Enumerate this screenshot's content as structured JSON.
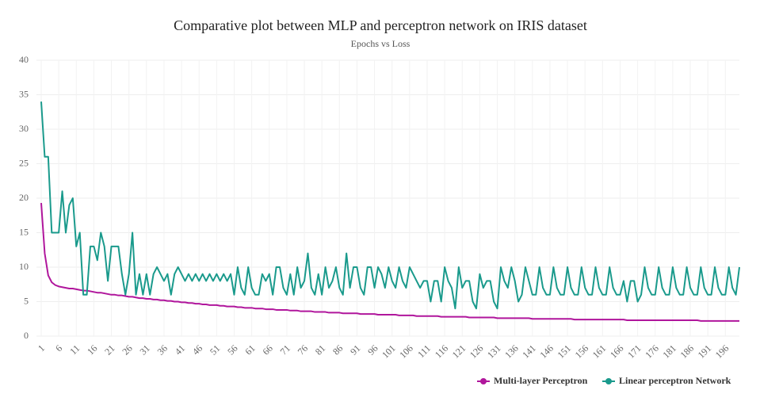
{
  "chart_data": {
    "type": "line",
    "title": "Comparative plot between MLP and perceptron network on IRIS dataset",
    "subtitle": "Epochs vs Loss",
    "categories": [
      "1",
      null,
      null,
      null,
      null,
      "6",
      null,
      null,
      null,
      null,
      "11",
      null,
      null,
      null,
      null,
      "16",
      null,
      null,
      null,
      null,
      "21",
      null,
      null,
      null,
      null,
      "26",
      null,
      null,
      null,
      null,
      "31",
      null,
      null,
      null,
      null,
      "36",
      null,
      null,
      null,
      null,
      "41",
      null,
      null,
      null,
      null,
      "46",
      null,
      null,
      null,
      null,
      "51",
      null,
      null,
      null,
      null,
      "56",
      null,
      null,
      null,
      null,
      "61",
      null,
      null,
      null,
      null,
      "66",
      null,
      null,
      null,
      null,
      "71",
      null,
      null,
      null,
      null,
      "76",
      null,
      null,
      null,
      null,
      "81",
      null,
      null,
      null,
      null,
      "86",
      null,
      null,
      null,
      null,
      "91",
      null,
      null,
      null,
      null,
      "96",
      null,
      null,
      null,
      null,
      "101",
      null,
      null,
      null,
      null,
      "106",
      null,
      null,
      null,
      null,
      "111",
      null,
      null,
      null,
      null,
      "116",
      null,
      null,
      null,
      null,
      "121",
      null,
      null,
      null,
      null,
      "126",
      null,
      null,
      null,
      null,
      "131",
      null,
      null,
      null,
      null,
      "136",
      null,
      null,
      null,
      null,
      "141",
      null,
      null,
      null,
      null,
      "146",
      null,
      null,
      null,
      null,
      "151",
      null,
      null,
      null,
      null,
      "156",
      null,
      null,
      null,
      null,
      "161",
      null,
      null,
      null,
      null,
      "166",
      null,
      null,
      null,
      null,
      "171",
      null,
      null,
      null,
      null,
      "176",
      null,
      null,
      null,
      null,
      "181",
      null,
      null,
      null,
      null,
      "186",
      null,
      null,
      null,
      null,
      "191",
      null,
      null,
      null,
      null,
      "196",
      null,
      null,
      null,
      null
    ],
    "series": [
      {
        "name": "Multi-layer Perceptron",
        "color": "#b0169c",
        "values": [
          19.3,
          12,
          8.8,
          7.8,
          7.4,
          7.2,
          7.1,
          7.0,
          6.9,
          6.9,
          6.8,
          6.7,
          6.6,
          6.6,
          6.5,
          6.4,
          6.3,
          6.3,
          6.2,
          6.1,
          6.0,
          6.0,
          5.9,
          5.9,
          5.8,
          5.7,
          5.7,
          5.6,
          5.5,
          5.5,
          5.4,
          5.4,
          5.3,
          5.3,
          5.2,
          5.2,
          5.1,
          5.1,
          5.0,
          5.0,
          4.9,
          4.9,
          4.8,
          4.8,
          4.7,
          4.7,
          4.6,
          4.6,
          4.5,
          4.5,
          4.5,
          4.4,
          4.4,
          4.3,
          4.3,
          4.3,
          4.2,
          4.2,
          4.1,
          4.1,
          4.1,
          4.0,
          4.0,
          4.0,
          3.9,
          3.9,
          3.9,
          3.8,
          3.8,
          3.8,
          3.8,
          3.7,
          3.7,
          3.7,
          3.6,
          3.6,
          3.6,
          3.6,
          3.5,
          3.5,
          3.5,
          3.5,
          3.4,
          3.4,
          3.4,
          3.4,
          3.3,
          3.3,
          3.3,
          3.3,
          3.3,
          3.2,
          3.2,
          3.2,
          3.2,
          3.2,
          3.1,
          3.1,
          3.1,
          3.1,
          3.1,
          3.1,
          3.0,
          3.0,
          3.0,
          3.0,
          3.0,
          2.9,
          2.9,
          2.9,
          2.9,
          2.9,
          2.9,
          2.9,
          2.8,
          2.8,
          2.8,
          2.8,
          2.8,
          2.8,
          2.8,
          2.8,
          2.7,
          2.7,
          2.7,
          2.7,
          2.7,
          2.7,
          2.7,
          2.7,
          2.6,
          2.6,
          2.6,
          2.6,
          2.6,
          2.6,
          2.6,
          2.6,
          2.6,
          2.6,
          2.5,
          2.5,
          2.5,
          2.5,
          2.5,
          2.5,
          2.5,
          2.5,
          2.5,
          2.5,
          2.5,
          2.5,
          2.4,
          2.4,
          2.4,
          2.4,
          2.4,
          2.4,
          2.4,
          2.4,
          2.4,
          2.4,
          2.4,
          2.4,
          2.4,
          2.4,
          2.4,
          2.3,
          2.3,
          2.3,
          2.3,
          2.3,
          2.3,
          2.3,
          2.3,
          2.3,
          2.3,
          2.3,
          2.3,
          2.3,
          2.3,
          2.3,
          2.3,
          2.3,
          2.3,
          2.3,
          2.3,
          2.3,
          2.2,
          2.2,
          2.2,
          2.2,
          2.2,
          2.2,
          2.2,
          2.2,
          2.2,
          2.2,
          2.2,
          2.2
        ]
      },
      {
        "name": "Linear perceptron Network",
        "color": "#1a9a8c",
        "values": [
          34,
          26,
          26,
          15,
          15,
          15,
          21,
          15,
          19,
          20,
          13,
          15,
          6,
          6,
          13,
          13,
          11,
          15,
          13,
          8,
          13,
          13,
          13,
          9,
          6,
          9,
          15,
          6,
          9,
          6,
          9,
          6,
          9,
          10,
          9,
          8,
          9,
          6,
          9,
          10,
          9,
          8,
          9,
          8,
          9,
          8,
          9,
          8,
          9,
          8,
          9,
          8,
          9,
          8,
          9,
          6,
          10,
          7,
          6,
          10,
          7,
          6,
          6,
          9,
          8,
          9,
          6,
          10,
          10,
          7,
          6,
          9,
          6,
          10,
          7,
          8,
          12,
          7,
          6,
          9,
          6,
          10,
          7,
          8,
          10,
          7,
          6,
          12,
          7,
          10,
          10,
          7,
          6,
          10,
          10,
          7,
          10,
          9,
          7,
          10,
          8,
          7,
          10,
          8,
          7,
          10,
          9,
          8,
          7,
          8,
          8,
          5,
          8,
          8,
          5,
          10,
          8,
          7,
          4,
          10,
          7,
          8,
          8,
          5,
          4,
          9,
          7,
          8,
          8,
          5,
          4,
          10,
          8,
          7,
          10,
          8,
          5,
          6,
          10,
          8,
          6,
          6,
          10,
          7,
          6,
          6,
          10,
          7,
          6,
          6,
          10,
          7,
          6,
          6,
          10,
          7,
          6,
          6,
          10,
          7,
          6,
          6,
          10,
          7,
          6,
          6,
          8,
          5,
          8,
          8,
          5,
          6,
          10,
          7,
          6,
          6,
          10,
          7,
          6,
          6,
          10,
          7,
          6,
          6,
          10,
          7,
          6,
          6,
          10,
          7,
          6,
          6,
          10,
          7,
          6,
          6,
          10,
          7,
          6,
          10
        ]
      }
    ],
    "ylim": [
      0,
      40
    ],
    "yticks": [
      0,
      5,
      10,
      15,
      20,
      25,
      30,
      35,
      40
    ],
    "grid": true
  }
}
